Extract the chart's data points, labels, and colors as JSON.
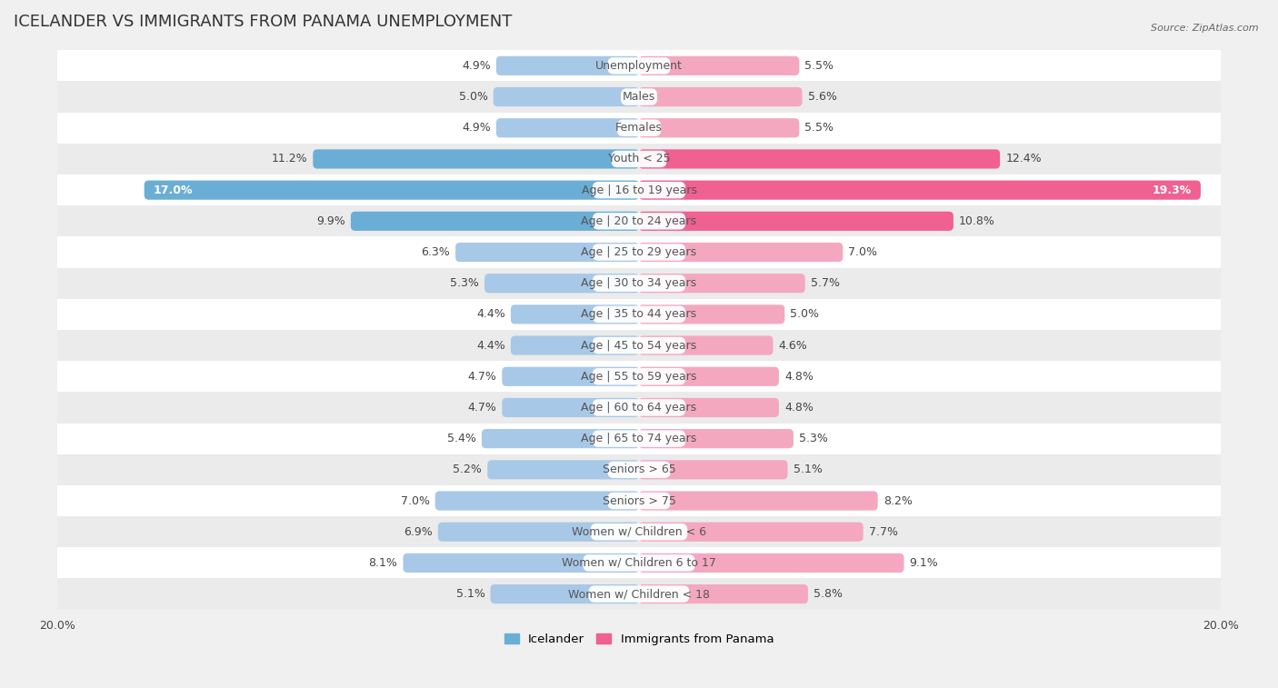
{
  "title": "Icelander vs Immigrants from Panama Unemployment",
  "source": "Source: ZipAtlas.com",
  "categories": [
    "Unemployment",
    "Males",
    "Females",
    "Youth < 25",
    "Age | 16 to 19 years",
    "Age | 20 to 24 years",
    "Age | 25 to 29 years",
    "Age | 30 to 34 years",
    "Age | 35 to 44 years",
    "Age | 45 to 54 years",
    "Age | 55 to 59 years",
    "Age | 60 to 64 years",
    "Age | 65 to 74 years",
    "Seniors > 65",
    "Seniors > 75",
    "Women w/ Children < 6",
    "Women w/ Children 6 to 17",
    "Women w/ Children < 18"
  ],
  "icelander": [
    4.9,
    5.0,
    4.9,
    11.2,
    17.0,
    9.9,
    6.3,
    5.3,
    4.4,
    4.4,
    4.7,
    4.7,
    5.4,
    5.2,
    7.0,
    6.9,
    8.1,
    5.1
  ],
  "panama": [
    5.5,
    5.6,
    5.5,
    12.4,
    19.3,
    10.8,
    7.0,
    5.7,
    5.0,
    4.6,
    4.8,
    4.8,
    5.3,
    5.1,
    8.2,
    7.7,
    9.1,
    5.8
  ],
  "icelander_color": "#a8c8e8",
  "panama_color": "#f4a8c0",
  "highlight_icelander_color": "#6aaed6",
  "highlight_panama_color": "#f06090",
  "row_color_odd": "#f5f5f5",
  "row_color_even": "#e8e8e8",
  "background_color": "#f0f0f0",
  "axis_limit": 20.0,
  "bar_height": 0.6,
  "title_fontsize": 13,
  "label_fontsize": 9,
  "tick_fontsize": 9,
  "legend_fontsize": 9.5,
  "value_fontsize": 9
}
